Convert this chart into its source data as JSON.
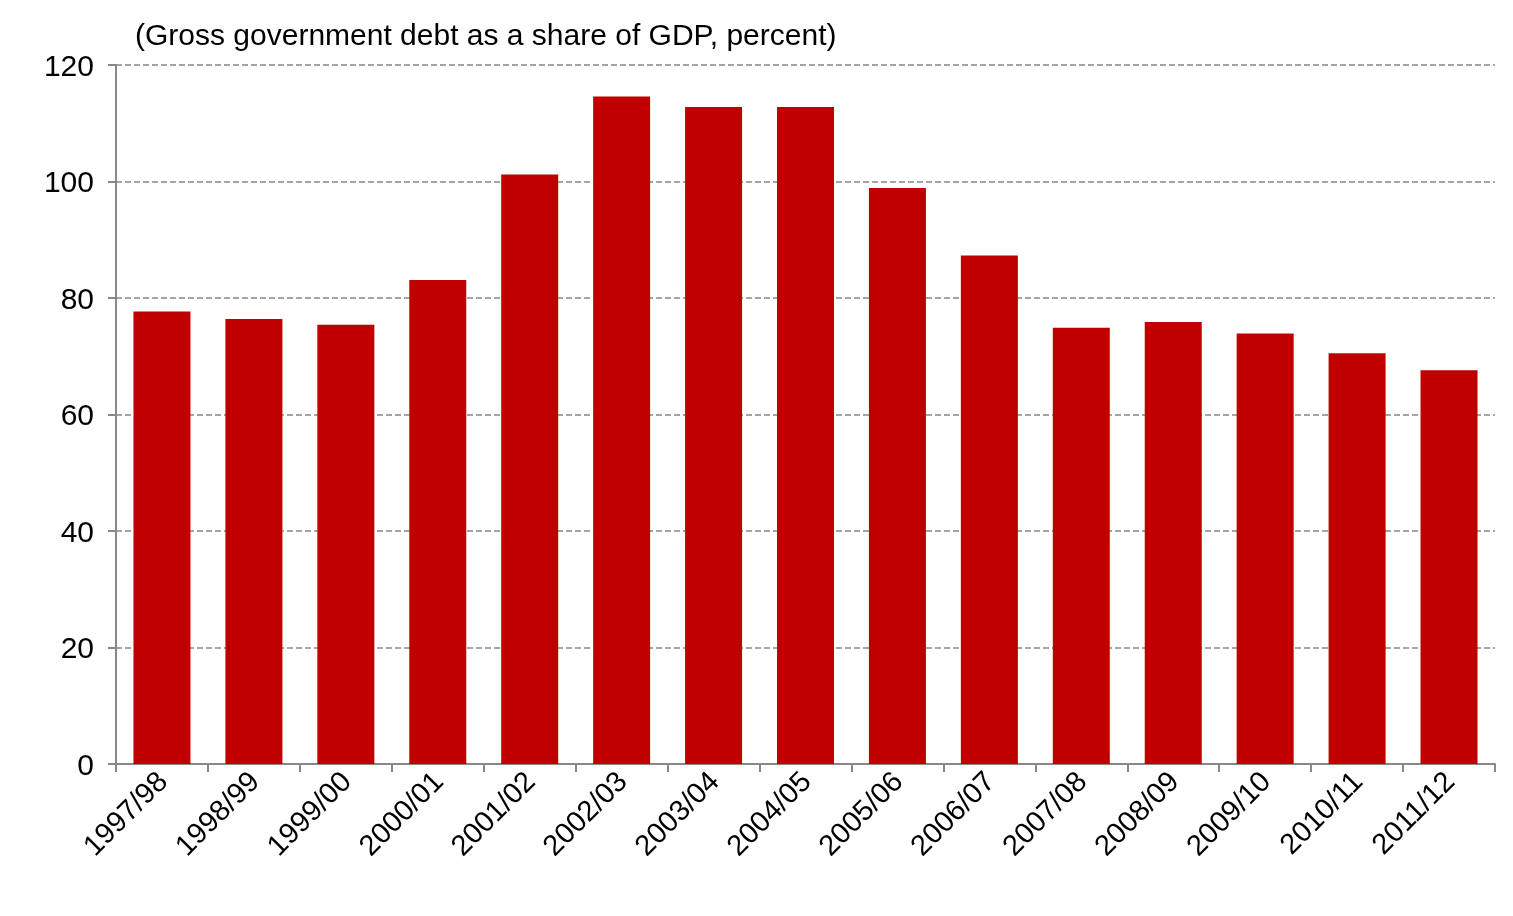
{
  "chart_data": {
    "type": "bar",
    "title": "(Gross government debt as a share of GDP, percent)",
    "categories": [
      "1997/98",
      "1998/99",
      "1999/00",
      "2000/01",
      "2001/02",
      "2002/03",
      "2003/04",
      "2004/05",
      "2005/06",
      "2006/07",
      "2007/08",
      "2008/09",
      "2009/10",
      "2010/11",
      "2011/12"
    ],
    "values": [
      77.7,
      76.4,
      75.4,
      83.1,
      101.2,
      114.6,
      112.8,
      112.8,
      98.9,
      87.3,
      74.9,
      75.9,
      73.9,
      70.5,
      67.6
    ],
    "color": "#c00000",
    "ylim": [
      0,
      120
    ],
    "yticks": [
      0,
      20,
      40,
      60,
      80,
      100,
      120
    ],
    "grid": "y"
  }
}
